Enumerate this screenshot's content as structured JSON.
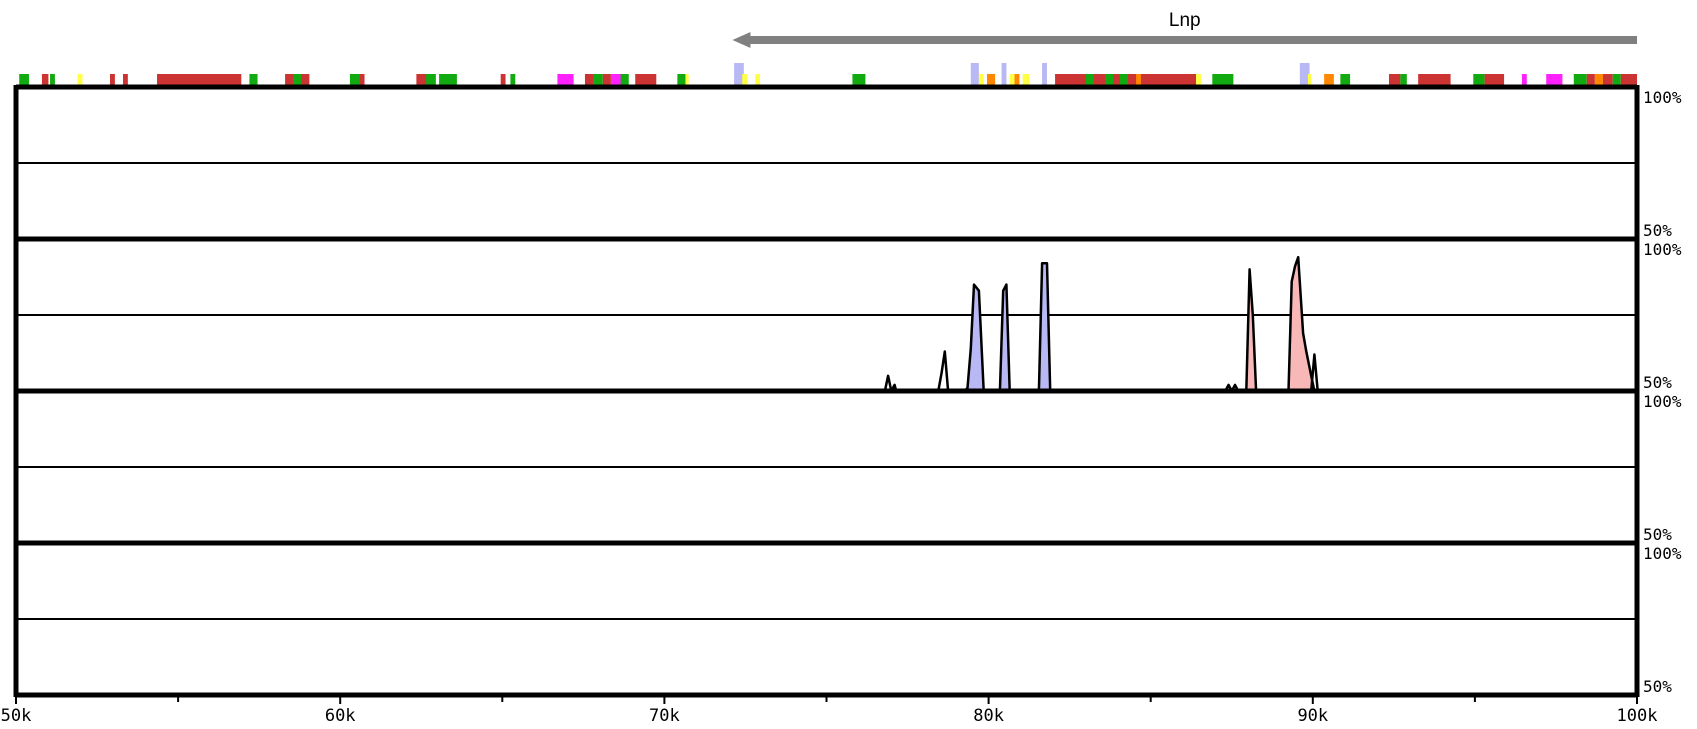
{
  "chart_data": {
    "type": "area",
    "x_unit": "bp",
    "xlim": [
      50000,
      100000
    ],
    "ylim": [
      50,
      100
    ],
    "x_ticks": [
      {
        "value": 50000,
        "label": "50k"
      },
      {
        "value": 60000,
        "label": "60k"
      },
      {
        "value": 70000,
        "label": "70k"
      },
      {
        "value": 80000,
        "label": "80k"
      },
      {
        "value": 90000,
        "label": "90k"
      },
      {
        "value": 100000,
        "label": "100k"
      }
    ],
    "minor_ticks": [
      55000,
      65000,
      75000,
      85000,
      95000
    ],
    "y_top_label": "100%",
    "y_bottom_label": "50%",
    "y_mid_value": 75,
    "gene": {
      "label": "Lnp",
      "start": 72100,
      "end": 100000,
      "strand": "-",
      "color": "#808080"
    },
    "colors": {
      "red": "#cc3333",
      "green": "#11aa11",
      "yellow": "#ffff44",
      "magenta": "#ff22ff",
      "orange": "#ff8800",
      "lightblue": "#b8b8f4",
      "pink": "#f8b8b8",
      "frame": "#000000"
    },
    "features": [
      {
        "start": 50100,
        "end": 50400,
        "color": "green"
      },
      {
        "start": 50800,
        "end": 51000,
        "color": "red"
      },
      {
        "start": 51050,
        "end": 51200,
        "color": "green"
      },
      {
        "start": 51900,
        "end": 52050,
        "color": "yellow"
      },
      {
        "start": 52900,
        "end": 53050,
        "color": "red"
      },
      {
        "start": 53300,
        "end": 53450,
        "color": "red"
      },
      {
        "start": 54350,
        "end": 56950,
        "color": "red"
      },
      {
        "start": 57200,
        "end": 57450,
        "color": "green"
      },
      {
        "start": 58300,
        "end": 59050,
        "color": "red"
      },
      {
        "start": 58550,
        "end": 58800,
        "color": "green"
      },
      {
        "start": 60300,
        "end": 60700,
        "color": "green"
      },
      {
        "start": 60600,
        "end": 60750,
        "color": "red"
      },
      {
        "start": 62350,
        "end": 62700,
        "color": "red"
      },
      {
        "start": 62650,
        "end": 62950,
        "color": "green"
      },
      {
        "start": 63050,
        "end": 63600,
        "color": "green"
      },
      {
        "start": 64950,
        "end": 65100,
        "color": "red"
      },
      {
        "start": 65250,
        "end": 65400,
        "color": "green"
      },
      {
        "start": 66700,
        "end": 67200,
        "color": "magenta"
      },
      {
        "start": 67550,
        "end": 67900,
        "color": "red"
      },
      {
        "start": 67800,
        "end": 68100,
        "color": "green"
      },
      {
        "start": 68100,
        "end": 68350,
        "color": "red"
      },
      {
        "start": 68350,
        "end": 68700,
        "color": "magenta"
      },
      {
        "start": 68650,
        "end": 68900,
        "color": "green"
      },
      {
        "start": 69100,
        "end": 69750,
        "color": "red"
      },
      {
        "start": 70400,
        "end": 70650,
        "color": "green"
      },
      {
        "start": 70650,
        "end": 70750,
        "color": "yellow"
      },
      {
        "start": 72150,
        "end": 72450,
        "color": "lightblue",
        "tall": true
      },
      {
        "start": 72400,
        "end": 72550,
        "color": "yellow"
      },
      {
        "start": 72800,
        "end": 72950,
        "color": "yellow"
      },
      {
        "start": 75800,
        "end": 76200,
        "color": "green"
      },
      {
        "start": 79450,
        "end": 79700,
        "color": "lightblue",
        "tall": true
      },
      {
        "start": 79700,
        "end": 79850,
        "color": "yellow"
      },
      {
        "start": 79950,
        "end": 80200,
        "color": "orange"
      },
      {
        "start": 80400,
        "end": 80550,
        "color": "lightblue",
        "tall": true
      },
      {
        "start": 80650,
        "end": 80800,
        "color": "yellow"
      },
      {
        "start": 80800,
        "end": 80950,
        "color": "orange"
      },
      {
        "start": 81050,
        "end": 81250,
        "color": "yellow"
      },
      {
        "start": 81650,
        "end": 81800,
        "color": "lightblue",
        "tall": true
      },
      {
        "start": 82050,
        "end": 86400,
        "color": "red"
      },
      {
        "start": 83000,
        "end": 83250,
        "color": "green"
      },
      {
        "start": 83600,
        "end": 83850,
        "color": "green"
      },
      {
        "start": 84050,
        "end": 84300,
        "color": "green"
      },
      {
        "start": 84550,
        "end": 84700,
        "color": "orange"
      },
      {
        "start": 86400,
        "end": 86550,
        "color": "yellow"
      },
      {
        "start": 86900,
        "end": 87550,
        "color": "green"
      },
      {
        "start": 89600,
        "end": 89900,
        "color": "lightblue",
        "tall": true
      },
      {
        "start": 89850,
        "end": 89950,
        "color": "yellow"
      },
      {
        "start": 90350,
        "end": 90650,
        "color": "orange"
      },
      {
        "start": 90850,
        "end": 91150,
        "color": "green"
      },
      {
        "start": 92350,
        "end": 92700,
        "color": "red"
      },
      {
        "start": 92700,
        "end": 92900,
        "color": "green"
      },
      {
        "start": 93250,
        "end": 94250,
        "color": "red"
      },
      {
        "start": 94950,
        "end": 95300,
        "color": "green"
      },
      {
        "start": 95300,
        "end": 95900,
        "color": "red"
      },
      {
        "start": 96450,
        "end": 96600,
        "color": "magenta"
      },
      {
        "start": 97200,
        "end": 97700,
        "color": "magenta"
      },
      {
        "start": 98050,
        "end": 98450,
        "color": "green"
      },
      {
        "start": 98450,
        "end": 98700,
        "color": "red"
      },
      {
        "start": 98700,
        "end": 98950,
        "color": "orange"
      },
      {
        "start": 98950,
        "end": 99250,
        "color": "red"
      },
      {
        "start": 99250,
        "end": 99500,
        "color": "green"
      },
      {
        "start": 99500,
        "end": 100000,
        "color": "red"
      }
    ],
    "panels": [
      {
        "name": "",
        "peaks": []
      },
      {
        "name": "",
        "peaks": [
          {
            "points": [
              [
                76800,
                50
              ],
              [
                76900,
                55
              ],
              [
                77000,
                50
              ],
              [
                77100,
                52
              ],
              [
                77150,
                50
              ]
            ]
          },
          {
            "points": [
              [
                78450,
                50
              ],
              [
                78550,
                56
              ],
              [
                78650,
                63
              ],
              [
                78750,
                50
              ]
            ]
          },
          {
            "points": [
              [
                79250,
                50
              ],
              [
                79350,
                51
              ],
              [
                79450,
                64
              ],
              [
                79550,
                85
              ],
              [
                79700,
                83
              ],
              [
                79850,
                50
              ]
            ],
            "fill": "lightblue"
          },
          {
            "points": [
              [
                80350,
                50
              ],
              [
                80450,
                83
              ],
              [
                80550,
                85
              ],
              [
                80650,
                50
              ]
            ],
            "fill": "lightblue"
          },
          {
            "points": [
              [
                81550,
                50
              ],
              [
                81650,
                92
              ],
              [
                81800,
                92
              ],
              [
                81900,
                50
              ]
            ],
            "fill": "lightblue"
          },
          {
            "points": [
              [
                87300,
                50
              ],
              [
                87400,
                52
              ],
              [
                87500,
                50
              ],
              [
                87600,
                52
              ],
              [
                87700,
                50
              ]
            ]
          },
          {
            "points": [
              [
                87950,
                50
              ],
              [
                88050,
                90
              ],
              [
                88150,
                75
              ],
              [
                88250,
                50
              ]
            ],
            "fill": "pink"
          },
          {
            "points": [
              [
                89250,
                50
              ],
              [
                89350,
                86
              ],
              [
                89450,
                91
              ],
              [
                89550,
                94
              ],
              [
                89700,
                69
              ],
              [
                89800,
                63
              ],
              [
                89950,
                55
              ],
              [
                90050,
                50
              ]
            ],
            "fill": "pink"
          },
          {
            "points": [
              [
                89950,
                50
              ],
              [
                90050,
                62
              ],
              [
                90150,
                50
              ]
            ]
          }
        ]
      },
      {
        "name": "",
        "peaks": []
      },
      {
        "name": "",
        "peaks": []
      }
    ]
  }
}
